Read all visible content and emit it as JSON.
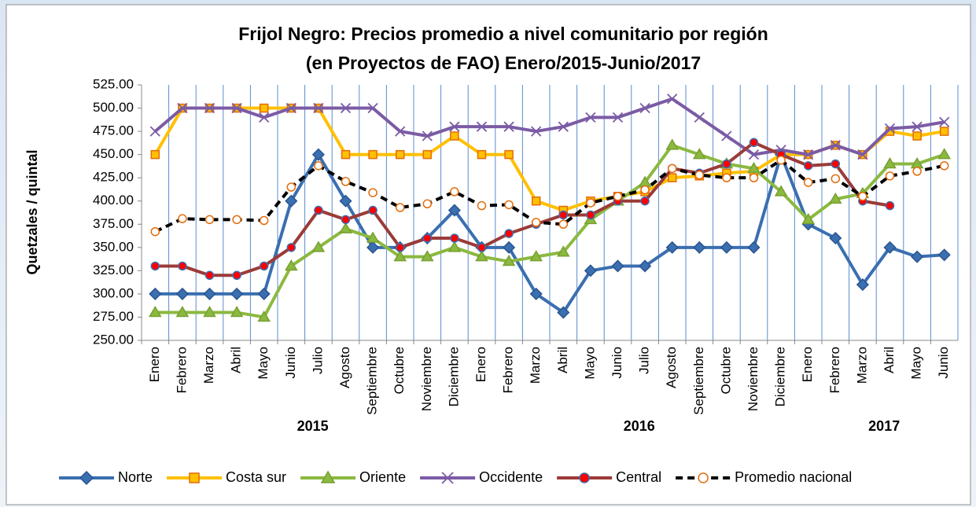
{
  "chart_data": {
    "type": "line",
    "title": [
      "Frijol Negro: Precios promedio a nivel comunitario por región",
      "(en Proyectos de FAO)  Enero/2015-Junio/2017"
    ],
    "y_label": "Quetzales / quintal",
    "categories": [
      "Enero",
      "Febrero",
      "Marzo",
      "Abril",
      "Mayo",
      "Junio",
      "Julio",
      "Agosto",
      "Septiembre",
      "Octubre",
      "Noviembre",
      "Diciembre",
      "Enero",
      "Febrero",
      "Marzo",
      "Abril",
      "Mayo",
      "Junio",
      "Julio",
      "Agosto",
      "Septiembre",
      "Octubre",
      "Noviembre",
      "Diciembre",
      "Enero",
      "Febrero",
      "Marzo",
      "Abril",
      "Mayo",
      "Junio"
    ],
    "year_groups": [
      {
        "label": "2015",
        "count": 12
      },
      {
        "label": "2016",
        "count": 12
      },
      {
        "label": "2017",
        "count": 6
      }
    ],
    "ylim": [
      250,
      525
    ],
    "yticks": [
      {
        "value": 250,
        "label": "250.00"
      },
      {
        "value": 275,
        "label": "275.00"
      },
      {
        "value": 300,
        "label": "300.00"
      },
      {
        "value": 325,
        "label": "325.00"
      },
      {
        "value": 350,
        "label": "350.00"
      },
      {
        "value": 375,
        "label": "375.00"
      },
      {
        "value": 400,
        "label": "400.00"
      },
      {
        "value": 425,
        "label": "425.00"
      },
      {
        "value": 450,
        "label": "450.00"
      },
      {
        "value": 475,
        "label": "475.00"
      },
      {
        "value": 500,
        "label": "500.00"
      },
      {
        "value": 525,
        "label": "525.00"
      }
    ],
    "grid": "x",
    "legend": "bottom",
    "series": [
      {
        "name": "Norte",
        "color": "#3a6fb0",
        "marker": "diamond",
        "marker_fill": "#3a6fb0",
        "marker_stroke": "#2a5590",
        "values": [
          300,
          300,
          300,
          300,
          300,
          400,
          450,
          400,
          350,
          350,
          360,
          390,
          350,
          350,
          300,
          280,
          325,
          330,
          330,
          350,
          350,
          350,
          350,
          450,
          375,
          360,
          310,
          350,
          340,
          342
        ]
      },
      {
        "name": "Costa sur",
        "color": "#ffc000",
        "marker": "square",
        "marker_fill": "#ffc000",
        "marker_stroke": "#e46c0a",
        "values": [
          450,
          500,
          500,
          500,
          500,
          500,
          500,
          450,
          450,
          450,
          450,
          470,
          450,
          450,
          400,
          390,
          400,
          405,
          410,
          425,
          427,
          430,
          432,
          450,
          450,
          460,
          450,
          475,
          470,
          475
        ]
      },
      {
        "name": "Oriente",
        "color": "#8bb940",
        "marker": "triangle",
        "marker_fill": "#8bb940",
        "marker_stroke": "#77a030",
        "values": [
          280,
          280,
          280,
          280,
          275,
          330,
          350,
          370,
          360,
          340,
          340,
          350,
          340,
          335,
          340,
          345,
          380,
          400,
          420,
          460,
          450,
          440,
          435,
          410,
          380,
          402,
          408,
          440,
          440,
          450
        ]
      },
      {
        "name": "Occidente",
        "color": "#7b5ba5",
        "marker": "x",
        "marker_fill": "none",
        "marker_stroke": "#7b5ba5",
        "values": [
          475,
          500,
          500,
          500,
          490,
          500,
          500,
          500,
          500,
          475,
          470,
          480,
          480,
          480,
          475,
          480,
          490,
          490,
          500,
          510,
          490,
          470,
          450,
          455,
          450,
          460,
          450,
          478,
          480,
          485
        ]
      },
      {
        "name": "Central",
        "color": "#9b3b38",
        "marker": "circle",
        "marker_fill": "#ff0000",
        "marker_stroke": "#3a6fb0",
        "values": [
          330,
          330,
          320,
          320,
          330,
          350,
          390,
          380,
          390,
          350,
          360,
          360,
          350,
          365,
          375,
          385,
          385,
          400,
          400,
          435,
          430,
          440,
          463,
          450,
          438,
          440,
          400,
          395,
          null,
          null
        ]
      },
      {
        "name": "Promedio nacional",
        "color": "#000000",
        "dashed": true,
        "marker": "circle",
        "marker_fill": "#ffffff",
        "marker_stroke": "#e46c0a",
        "values": [
          367,
          381,
          380,
          380,
          379,
          415,
          438,
          421,
          409,
          393,
          397,
          410,
          395,
          396,
          377,
          375,
          398,
          405,
          412,
          435,
          428,
          425,
          425,
          444,
          420,
          424,
          405,
          427,
          432,
          438
        ]
      }
    ]
  }
}
